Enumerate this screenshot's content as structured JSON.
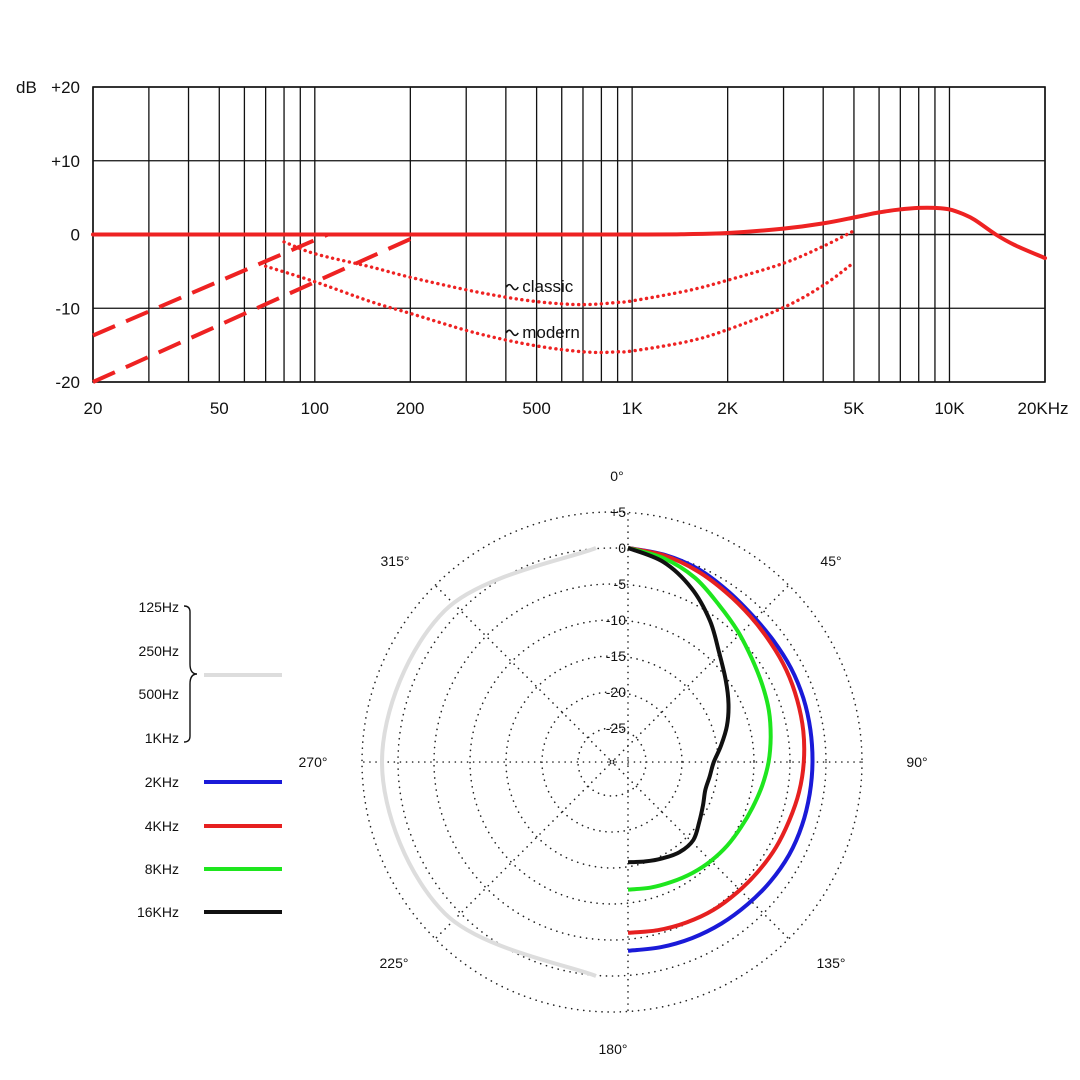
{
  "chart_data": [
    {
      "type": "line",
      "xscale": "log",
      "xlim": [
        20,
        20000
      ],
      "ylim": [
        -20,
        20
      ],
      "ylabel": "dB",
      "grid": true,
      "yticks": [
        {
          "value": 20,
          "label": "+20"
        },
        {
          "value": 10,
          "label": "+10"
        },
        {
          "value": 0,
          "label": "0"
        },
        {
          "value": -10,
          "label": "-10"
        },
        {
          "value": -20,
          "label": "-20"
        }
      ],
      "xticks": [
        {
          "value": 20,
          "label": "20"
        },
        {
          "value": 50,
          "label": "50"
        },
        {
          "value": 100,
          "label": "100"
        },
        {
          "value": 200,
          "label": "200"
        },
        {
          "value": 500,
          "label": "500"
        },
        {
          "value": 1000,
          "label": "1K"
        },
        {
          "value": 2000,
          "label": "2K"
        },
        {
          "value": 5000,
          "label": "5K"
        },
        {
          "value": 10000,
          "label": "10K"
        },
        {
          "value": 20000,
          "label": "20KHz"
        }
      ],
      "minor_grid_x": [
        30,
        40,
        60,
        70,
        80,
        90,
        300,
        400,
        600,
        700,
        800,
        900,
        3000,
        4000,
        6000,
        7000,
        8000,
        9000
      ],
      "annotations": [
        {
          "text": "classic",
          "x": 560,
          "y": -7
        },
        {
          "text": "modern",
          "x": 560,
          "y": -13.2
        }
      ],
      "series": [
        {
          "style": "solid",
          "color": "#ee2222",
          "x": [
            20,
            100,
            1000,
            1500,
            2000,
            3000,
            4000,
            5000,
            6000,
            7000,
            8000,
            9000,
            10000,
            11000,
            12000,
            14000,
            16000,
            20000
          ],
          "y": [
            0,
            0,
            0,
            0.05,
            0.2,
            0.8,
            1.5,
            2.3,
            3.0,
            3.4,
            3.6,
            3.6,
            3.4,
            2.8,
            2.0,
            0,
            -1.4,
            -3.2
          ]
        },
        {
          "style": "dashed",
          "color": "#ee2222",
          "x": [
            20,
            110
          ],
          "y": [
            -13.7,
            0
          ]
        },
        {
          "style": "dashed",
          "color": "#ee2222",
          "x": [
            20,
            215
          ],
          "y": [
            -20,
            0
          ]
        },
        {
          "style": "dotted",
          "color": "#ee2222",
          "x": [
            80,
            100,
            150,
            200,
            300,
            400,
            500,
            600,
            700,
            800,
            900,
            1000,
            1500,
            2000,
            3000,
            4000,
            5000
          ],
          "y": [
            -1,
            -2.6,
            -4.4,
            -5.8,
            -7.5,
            -8.5,
            -9.1,
            -9.4,
            -9.5,
            -9.4,
            -9.2,
            -9.0,
            -7.6,
            -6.2,
            -3.9,
            -1.6,
            0.5
          ]
        },
        {
          "style": "dotted",
          "color": "#ee2222",
          "x": [
            70,
            100,
            150,
            200,
            300,
            400,
            500,
            600,
            700,
            800,
            900,
            1000,
            1500,
            2000,
            3000,
            4000,
            5000
          ],
          "y": [
            -4.3,
            -6.4,
            -9.1,
            -10.7,
            -13.0,
            -14.3,
            -15.1,
            -15.6,
            -15.9,
            -16.0,
            -15.9,
            -15.8,
            -14.5,
            -12.9,
            -9.9,
            -6.9,
            -3.8
          ]
        }
      ]
    },
    {
      "type": "polar",
      "rlim": [
        -30,
        5
      ],
      "ring_ticks": [
        {
          "value": 5,
          "label": "+5"
        },
        {
          "value": 0,
          "label": "0"
        },
        {
          "value": -5,
          "label": "-5"
        },
        {
          "value": -10,
          "label": "-10"
        },
        {
          "value": -15,
          "label": "-15"
        },
        {
          "value": -20,
          "label": "-20"
        },
        {
          "value": -25,
          "label": "-25"
        }
      ],
      "angle_labels": [
        {
          "deg": 0,
          "label": "0°"
        },
        {
          "deg": 45,
          "label": "45°"
        },
        {
          "deg": 90,
          "label": "90°"
        },
        {
          "deg": 135,
          "label": "135°"
        },
        {
          "deg": 180,
          "label": "180°"
        },
        {
          "deg": 225,
          "label": "225°"
        },
        {
          "deg": 270,
          "label": "270°"
        },
        {
          "deg": 315,
          "label": "315°"
        }
      ],
      "legend": {
        "placement": "left",
        "group": {
          "labels": [
            "125Hz",
            "250Hz",
            "500Hz",
            "1KHz"
          ],
          "color": "#dddddd"
        },
        "entries": [
          {
            "label": "2KHz",
            "color": "#1a1ad8"
          },
          {
            "label": "4KHz",
            "color": "#e62020"
          },
          {
            "label": "8KHz",
            "color": "#1ee61e"
          },
          {
            "label": "16KHz",
            "color": "#111111"
          }
        ]
      },
      "series": [
        {
          "name": "125Hz / 250Hz / 500Hz / 1KHz",
          "color": "#dddddd",
          "side": "left",
          "deg": [
            0,
            45,
            90,
            135,
            180
          ],
          "db": [
            0,
            0,
            0,
            0,
            0
          ]
        },
        {
          "name": "2KHz",
          "color": "#1a1ad8",
          "side": "right",
          "deg": [
            0,
            10,
            20,
            30,
            40,
            50,
            60,
            70,
            80,
            90,
            100,
            110,
            120,
            130,
            140,
            150,
            160,
            170,
            180
          ],
          "db": [
            0,
            -0.5,
            -1.2,
            -2.2,
            -3.0,
            -3.4,
            -3.6,
            -3.8,
            -4.0,
            -4.1,
            -4.1,
            -4.0,
            -3.9,
            -3.9,
            -3.9,
            -3.8,
            -3.7,
            -3.6,
            -3.5
          ]
        },
        {
          "name": "4KHz",
          "color": "#e62020",
          "side": "right",
          "deg": [
            0,
            10,
            20,
            30,
            40,
            50,
            60,
            70,
            80,
            90,
            100,
            110,
            120,
            130,
            140,
            150,
            160,
            170,
            180
          ],
          "db": [
            0,
            -0.6,
            -1.5,
            -2.5,
            -3.3,
            -3.9,
            -4.3,
            -4.7,
            -5.0,
            -5.3,
            -5.6,
            -5.9,
            -6.0,
            -6.1,
            -6.1,
            -6.0,
            -6.0,
            -6.0,
            -6.0
          ]
        },
        {
          "name": "8KHz",
          "color": "#1ee61e",
          "side": "right",
          "deg": [
            0,
            10,
            20,
            30,
            40,
            50,
            60,
            70,
            80,
            90,
            100,
            110,
            120,
            130,
            140,
            150,
            160,
            170,
            180
          ],
          "db": [
            0,
            -1.0,
            -2.5,
            -4.5,
            -6.0,
            -7.3,
            -8.2,
            -8.9,
            -9.6,
            -10.2,
            -10.8,
            -11.3,
            -11.6,
            -11.7,
            -11.8,
            -11.9,
            -12.0,
            -12.0,
            -12.0
          ]
        },
        {
          "name": "16KHz",
          "color": "#111111",
          "side": "right",
          "deg": [
            0,
            10,
            20,
            30,
            40,
            50,
            60,
            70,
            80,
            90,
            100,
            110,
            120,
            130,
            140,
            150,
            160,
            170,
            180
          ],
          "db": [
            0,
            -1.5,
            -4.0,
            -7.0,
            -10.0,
            -12.0,
            -13.6,
            -15.1,
            -16.6,
            -17.8,
            -18.2,
            -18.3,
            -17.7,
            -16.8,
            -15.6,
            -15.3,
            -15.5,
            -15.7,
            -15.8
          ]
        }
      ]
    }
  ]
}
